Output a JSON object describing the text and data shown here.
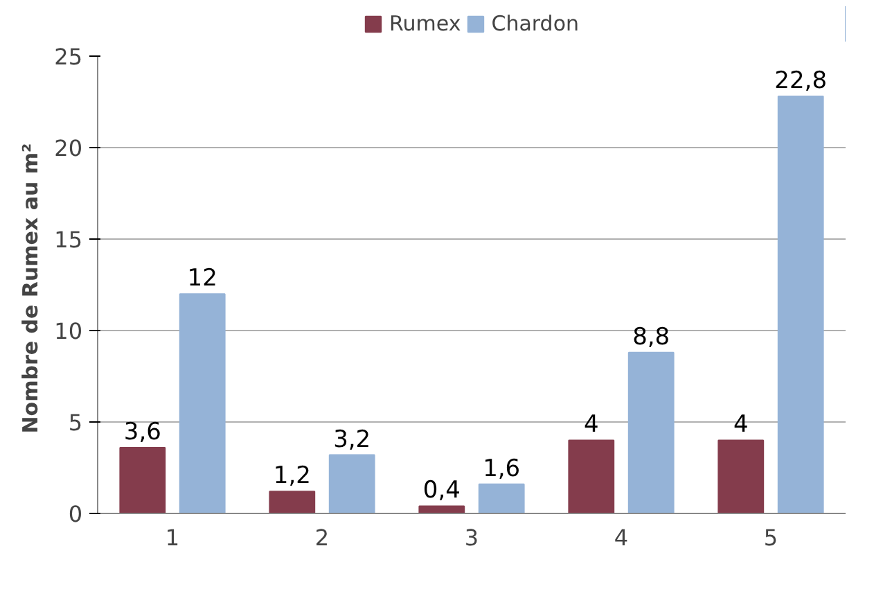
{
  "chart_data": {
    "type": "bar",
    "ylabel": "Nombre de Rumex  au m²",
    "categories": [
      "1",
      "2",
      "3",
      "4",
      "5"
    ],
    "series": [
      {
        "name": "Rumex",
        "color": "#843c4c",
        "values": [
          3.6,
          1.2,
          0.4,
          4,
          4
        ],
        "value_labels": [
          "3,6",
          "1,2",
          "0,4",
          "4",
          "4"
        ]
      },
      {
        "name": "Chardon",
        "color": "#95b3d7",
        "values": [
          12,
          3.2,
          1.6,
          8.8,
          22.8
        ],
        "value_labels": [
          "12",
          "3,2",
          "1,6",
          "8,8",
          "22,8"
        ]
      }
    ],
    "ylim": [
      0,
      25
    ],
    "yticks": [
      0,
      5,
      10,
      15,
      20,
      25
    ],
    "grid": "y",
    "legend": "top"
  }
}
